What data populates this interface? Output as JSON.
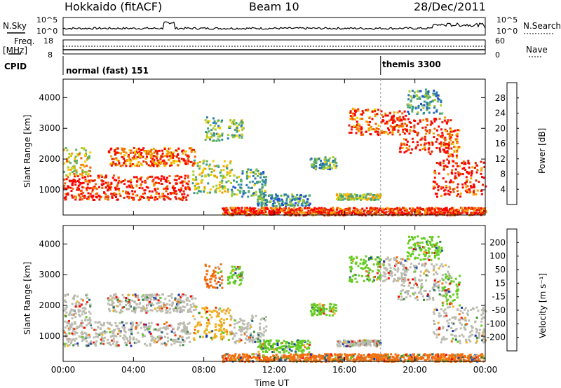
{
  "header": {
    "title": "Hokkaido (fitACF)",
    "beam": "Beam 10",
    "date": "28/Dec/2011"
  },
  "top_panels": {
    "nsky_label": "N.Sky",
    "nsky_ticks": [
      "10^5",
      "10^0"
    ],
    "nsearch_label": "N.Search",
    "nsearch_ticks": [
      "10^5",
      "10^0"
    ],
    "freq_label_1": "Freq.",
    "freq_label_2": "[MHz]",
    "freq_ticks": [
      "18",
      "8"
    ],
    "nave_label": "Nave",
    "nave_ticks": [
      "60",
      "0"
    ],
    "cpid_label": "CPID",
    "cpid_segments": [
      {
        "label": "normal (fast) 151",
        "start_hour": 0
      },
      {
        "label": "themis 3300",
        "start_hour": 18.05
      }
    ]
  },
  "chart_data": [
    {
      "type": "heatmap",
      "title": "",
      "xlabel": "",
      "ylabel": "Slant Range [km]",
      "xlim_hours": [
        0,
        24
      ],
      "ylim": [
        180,
        4600
      ],
      "y_ticks": [
        "1000",
        "2000",
        "3000",
        "4000"
      ],
      "colorbar": {
        "label": "Power [dB]",
        "ticks": [
          "4",
          "8",
          "12",
          "16",
          "20",
          "24",
          "28"
        ],
        "colors": [
          "#0000ff",
          "#2050d0",
          "#2a7ab0",
          "#3a9a8a",
          "#60b060",
          "#a8cc30",
          "#f0d000",
          "#f5a000",
          "#f06000",
          "#e02000",
          "#ff0000"
        ]
      }
    },
    {
      "type": "heatmap",
      "title": "",
      "xlabel": "Time UT",
      "ylabel": "Slant Range [km]",
      "xlim_hours": [
        0,
        24
      ],
      "ylim": [
        180,
        4600
      ],
      "x_ticks": [
        "00:00",
        "04:00",
        "08:00",
        "12:00",
        "16:00",
        "20:00",
        "00:00"
      ],
      "y_ticks": [
        "1000",
        "2000",
        "3000",
        "4000"
      ],
      "colorbar": {
        "label": "Velocity [m s⁻¹]",
        "ticks": [
          "200",
          "100",
          "50",
          "15",
          "-15",
          "-50",
          "-100",
          "-200"
        ],
        "colors": [
          "#1a3aa8",
          "#2a6a78",
          "#3a8a3a",
          "#66cc22",
          "#bbbbb0",
          "#f0b020",
          "#f07010",
          "#e83010",
          "#ff0000"
        ]
      }
    }
  ],
  "colors": {
    "ground_scatter": "#b4b4aa",
    "frame": "#000000"
  }
}
